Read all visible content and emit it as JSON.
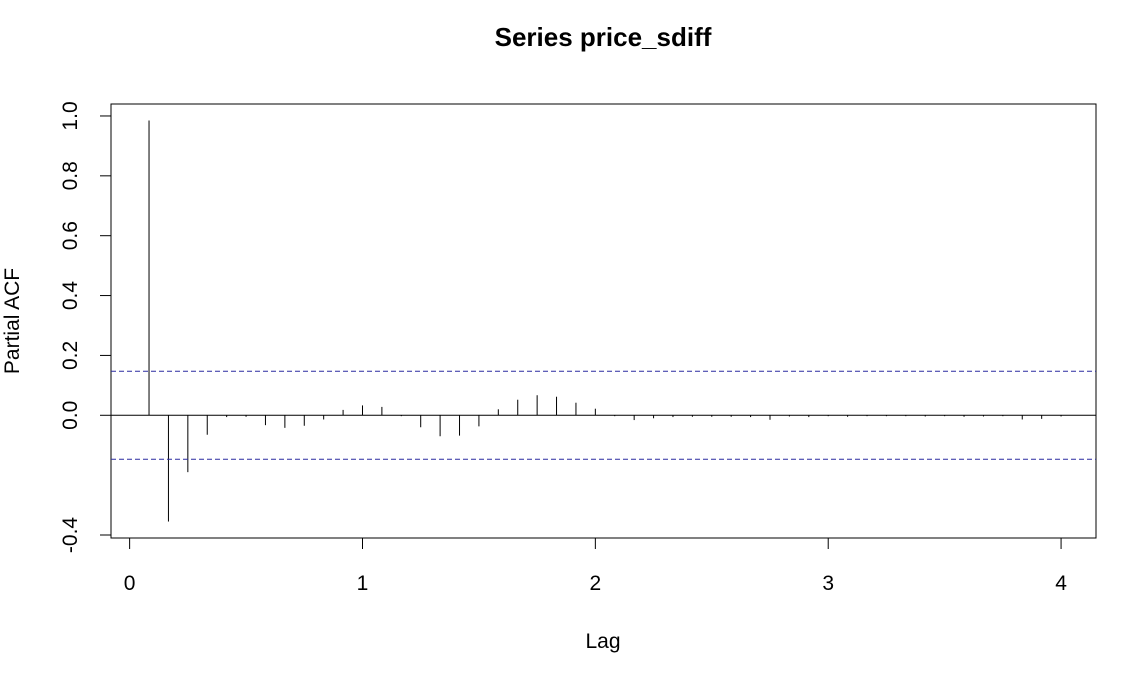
{
  "chart_data": {
    "type": "bar",
    "title": "Series  price_sdiff",
    "xlabel": "Lag",
    "ylabel": "Partial ACF",
    "xlim": [
      -0.08,
      4.15
    ],
    "ylim": [
      -0.41,
      1.04
    ],
    "x_ticks": [
      "0",
      "1",
      "2",
      "3",
      "4"
    ],
    "y_ticks": [
      "-0.4",
      "0.0",
      "0.2",
      "0.4",
      "0.6",
      "0.8",
      "1.0"
    ],
    "confidence_limits": [
      0.147,
      -0.147
    ],
    "confidence_color": "#2c2ca0",
    "grid": false,
    "series": [
      {
        "x": [
          0.0833,
          0.1667,
          0.25,
          0.3333,
          0.4167,
          0.5,
          0.5833,
          0.6667,
          0.75,
          0.8333,
          0.9167,
          1.0,
          1.0833,
          1.1667,
          1.25,
          1.3333,
          1.4167,
          1.5,
          1.5833,
          1.6667,
          1.75,
          1.8333,
          1.9167,
          2.0,
          2.0833,
          2.1667,
          2.25,
          2.3333,
          2.4167,
          2.5,
          2.5833,
          2.6667,
          2.75,
          2.8333,
          2.9167,
          3.0,
          3.0833,
          3.1667,
          3.25,
          3.3333,
          3.4167,
          3.5,
          3.5833,
          3.6667,
          3.75,
          3.8333,
          3.9167,
          4.0
        ],
        "values": [
          0.985,
          -0.355,
          -0.19,
          -0.065,
          -0.006,
          -0.005,
          -0.033,
          -0.042,
          -0.035,
          -0.014,
          0.018,
          0.033,
          0.028,
          -0.003,
          -0.04,
          -0.07,
          -0.068,
          -0.037,
          0.02,
          0.052,
          0.067,
          0.062,
          0.042,
          0.022,
          -0.003,
          -0.016,
          -0.01,
          -0.006,
          -0.005,
          -0.005,
          -0.005,
          -0.006,
          -0.015,
          -0.004,
          -0.006,
          -0.003,
          -0.005,
          -0.003,
          -0.003,
          -0.003,
          -0.004,
          -0.003,
          -0.005,
          -0.004,
          -0.003,
          -0.014,
          -0.012,
          -0.004
        ]
      }
    ]
  }
}
